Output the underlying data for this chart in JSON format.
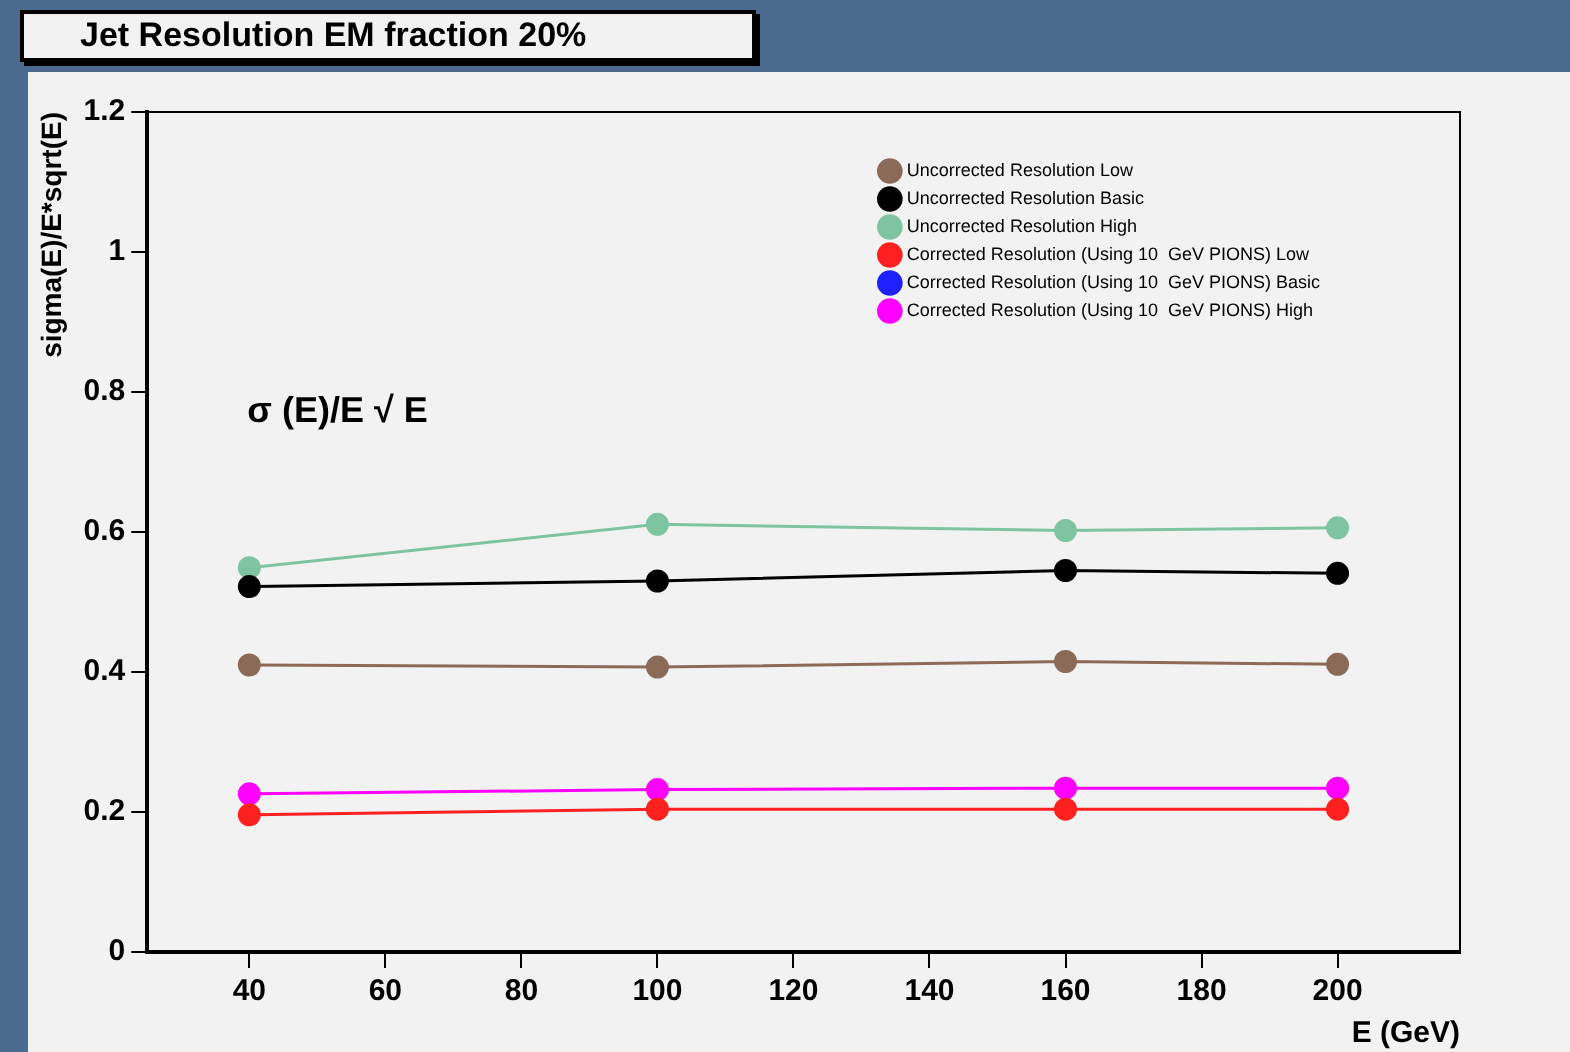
{
  "chart_data": {
    "type": "line",
    "title": "Jet  Resolution EM fraction 20%",
    "xlabel": "E (GeV)",
    "ylabel": "sigma(E)/E*sqrt(E)",
    "annotations": [
      "σ (E)/E √ E"
    ],
    "x": [
      40,
      100,
      160,
      200
    ],
    "xlim": [
      25,
      218
    ],
    "xticks": [
      40,
      60,
      80,
      100,
      120,
      140,
      160,
      180,
      200
    ],
    "ylim": [
      0,
      1.2
    ],
    "yticks": [
      0,
      0.2,
      0.4,
      0.6,
      0.8,
      1,
      1.2
    ],
    "grid": false,
    "legend": "top right",
    "marker": "circle",
    "line_style": "solid",
    "series": [
      {
        "name": "Uncorrected Resolution Low",
        "color": "#8b6a58",
        "values": [
          0.41,
          0.407,
          0.415,
          0.411
        ]
      },
      {
        "name": "Uncorrected Resolution Basic",
        "color": "#000000",
        "values": [
          0.522,
          0.53,
          0.545,
          0.541
        ]
      },
      {
        "name": "Uncorrected Resolution High",
        "color": "#7fc4a0",
        "values": [
          0.549,
          0.611,
          0.602,
          0.606
        ]
      },
      {
        "name": "Corrected Resolution (Using 10  GeV PIONS) Low",
        "color": "#ff2020",
        "values": [
          0.196,
          0.204,
          0.204,
          0.204
        ]
      },
      {
        "name": "Corrected Resolution (Using 10  GeV PIONS) Basic",
        "color": "#2020ff",
        "values": [
          null,
          null,
          null,
          null
        ]
      },
      {
        "name": "Corrected Resolution (Using 10  GeV PIONS) High",
        "color": "#ff00ff",
        "values": [
          0.226,
          0.232,
          0.234,
          0.234
        ]
      }
    ]
  }
}
